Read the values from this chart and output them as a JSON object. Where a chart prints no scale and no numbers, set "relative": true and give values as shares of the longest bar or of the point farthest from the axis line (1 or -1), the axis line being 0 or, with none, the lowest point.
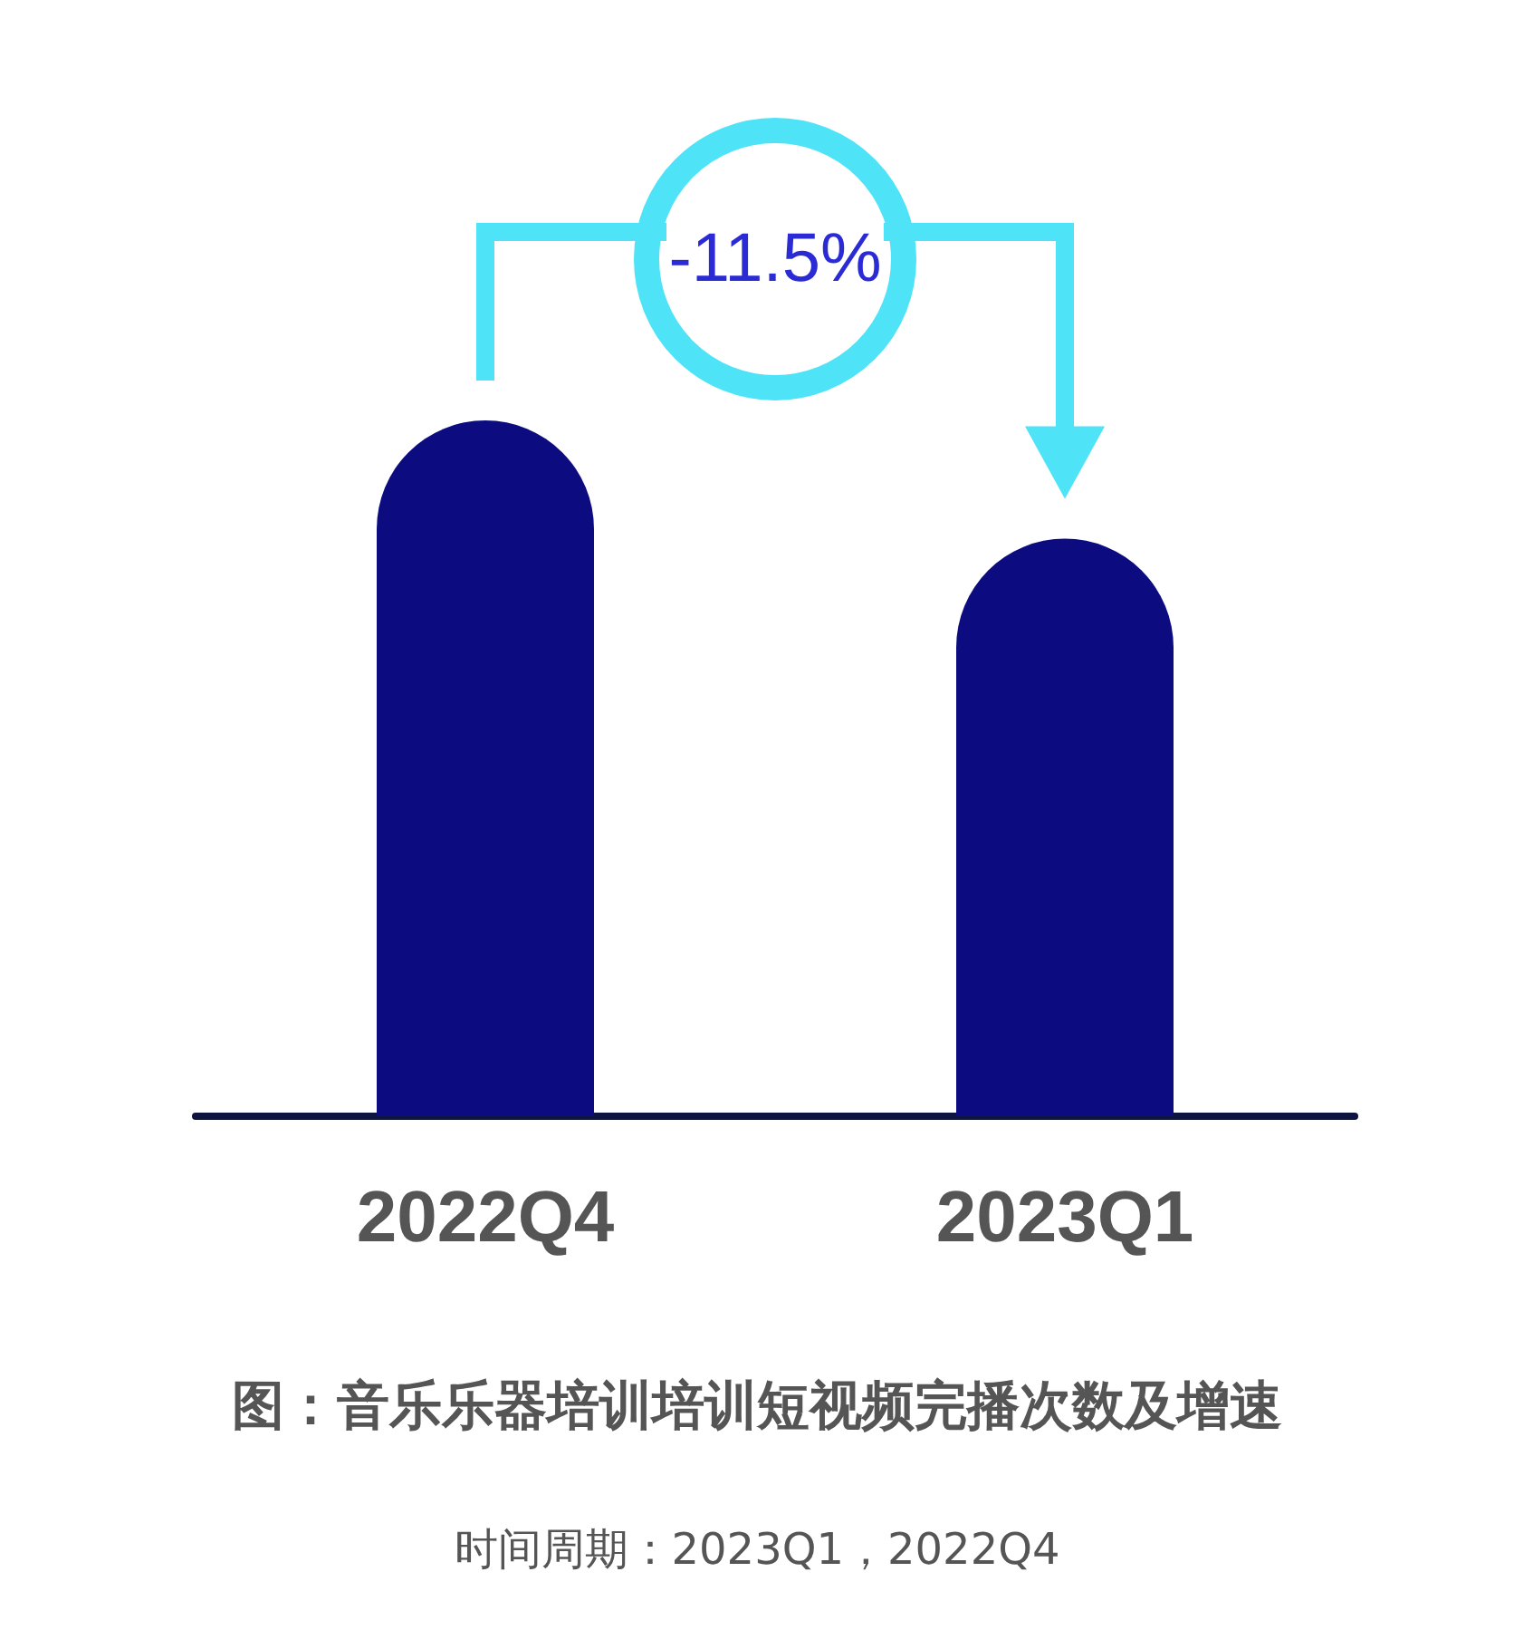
{
  "chart_data": {
    "type": "bar",
    "title": "图：音乐乐器培训培训短视频完播次数及增速",
    "categories": [
      "2022Q4",
      "2023Q1"
    ],
    "values": [
      1,
      0.83
    ],
    "color": "#0c0c80",
    "relative": true,
    "annotations": [
      "-11.5%",
      "时间周期：2023Q1，2022Q4"
    ]
  }
}
